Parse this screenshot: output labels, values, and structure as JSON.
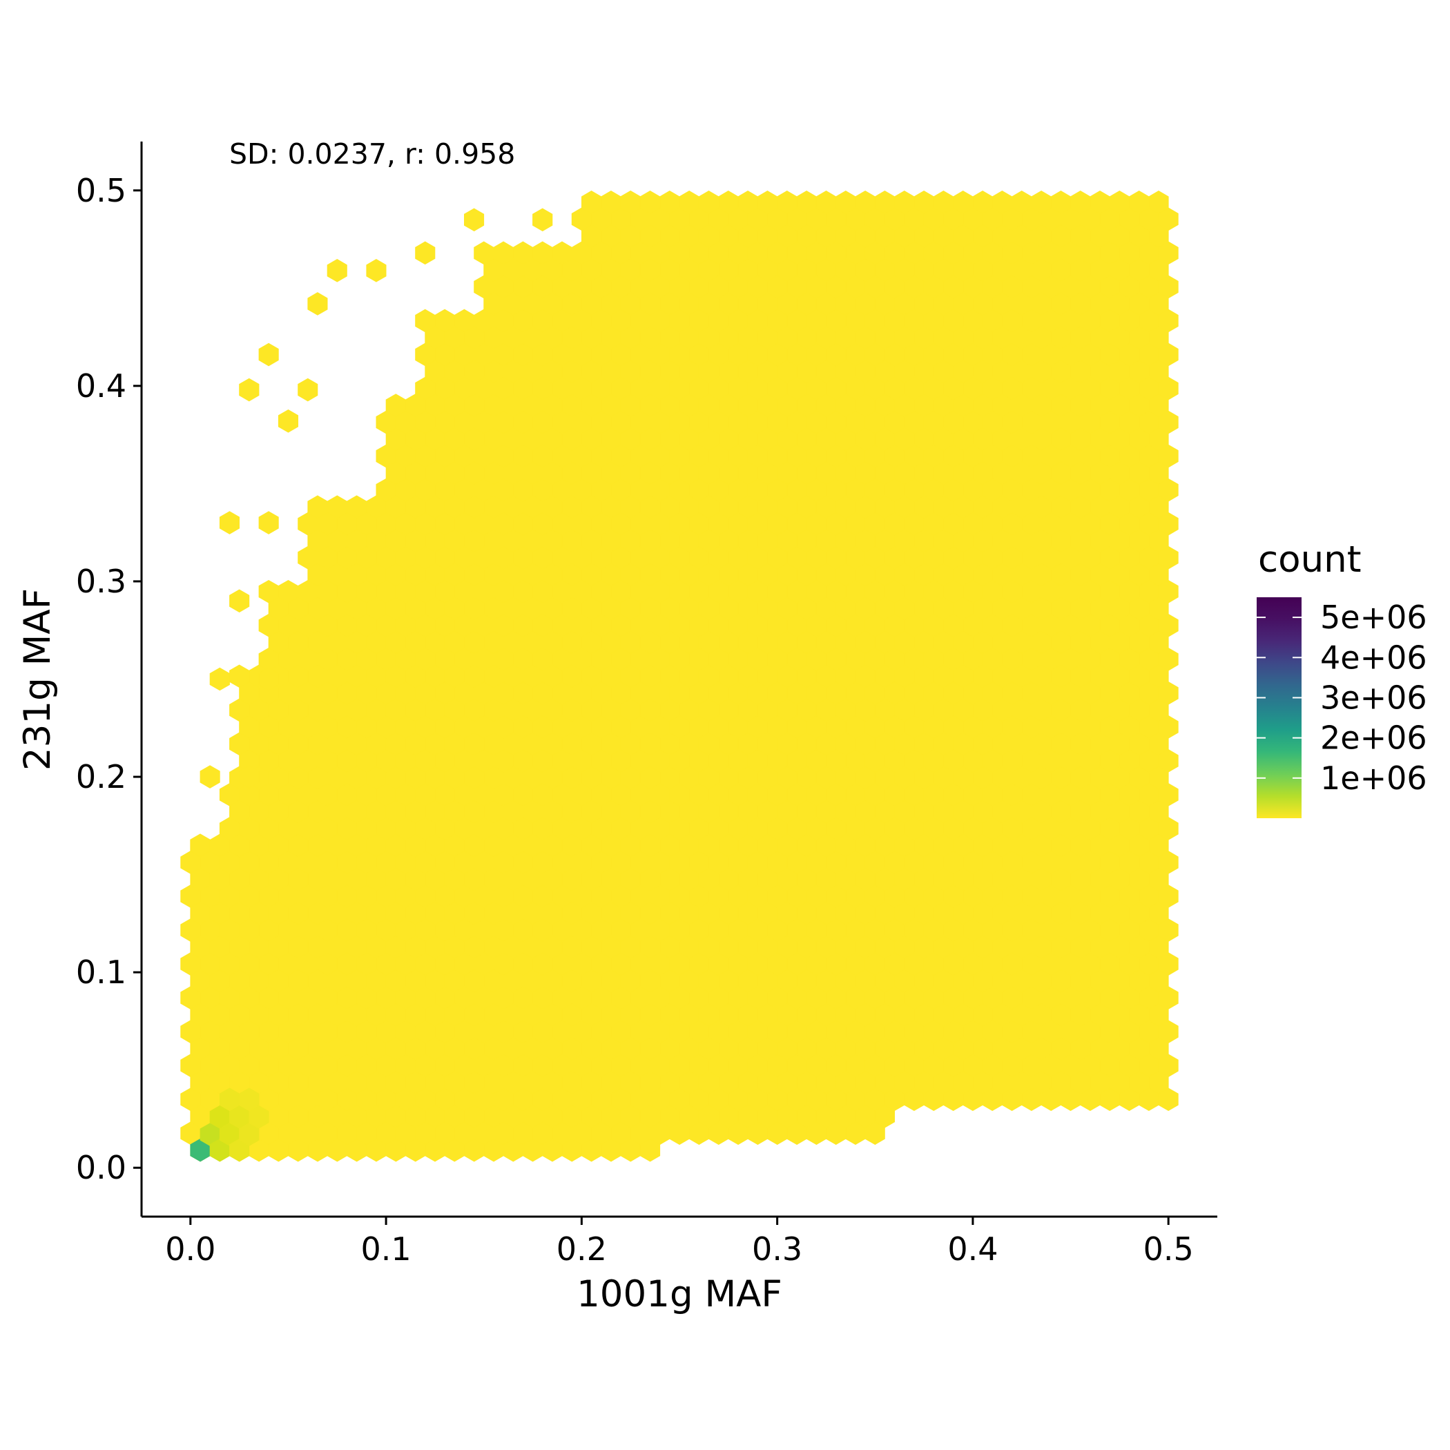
{
  "chart_data": {
    "type": "heatmap",
    "subtype": "hexbin",
    "annotation": "SD: 0.0237, r: 0.958",
    "xlabel": "1001g MAF",
    "ylabel": "231g MAF",
    "xlim": [
      -0.025,
      0.525
    ],
    "ylim": [
      -0.025,
      0.525
    ],
    "x_ticks": [
      0.0,
      0.1,
      0.2,
      0.3,
      0.4,
      0.5
    ],
    "x_tick_labels": [
      "0.0",
      "0.1",
      "0.2",
      "0.3",
      "0.4",
      "0.5"
    ],
    "y_ticks": [
      0.0,
      0.1,
      0.2,
      0.3,
      0.4,
      0.5
    ],
    "y_tick_labels": [
      "0.0",
      "0.1",
      "0.2",
      "0.3",
      "0.4",
      "0.5"
    ],
    "grid": false,
    "fill_color": "#FDE725",
    "bin_width": 0.01,
    "legend": {
      "title": "count",
      "placement": "right",
      "colormap": "viridis-reversed",
      "max": 5500000,
      "breaks": [
        1000000,
        2000000,
        3000000,
        4000000,
        5000000
      ],
      "labels": [
        "1e+06",
        "2e+06",
        "3e+06",
        "4e+06",
        "5e+06"
      ]
    },
    "high_count_bins": [
      {
        "x": 0.005,
        "y": 0.009,
        "count": 2300000,
        "color": "#3BBB75"
      },
      {
        "x": 0.01,
        "y": 0.017,
        "count": 600000,
        "color": "#C7E020"
      },
      {
        "x": 0.015,
        "y": 0.009,
        "count": 500000,
        "color": "#D2E21B"
      },
      {
        "x": 0.015,
        "y": 0.026,
        "count": 350000,
        "color": "#DDE318"
      },
      {
        "x": 0.02,
        "y": 0.017,
        "count": 300000,
        "color": "#E0E41A"
      },
      {
        "x": 0.025,
        "y": 0.026,
        "count": 220000,
        "color": "#E8E51E"
      },
      {
        "x": 0.025,
        "y": 0.009,
        "count": 200000,
        "color": "#EAE51F"
      },
      {
        "x": 0.03,
        "y": 0.017,
        "count": 180000,
        "color": "#ECE520"
      },
      {
        "x": 0.035,
        "y": 0.026,
        "count": 140000,
        "color": "#F0E621"
      },
      {
        "x": 0.03,
        "y": 0.035,
        "count": 130000,
        "color": "#F1E622"
      },
      {
        "x": 0.02,
        "y": 0.035,
        "count": 160000,
        "color": "#EEE621"
      }
    ]
  }
}
